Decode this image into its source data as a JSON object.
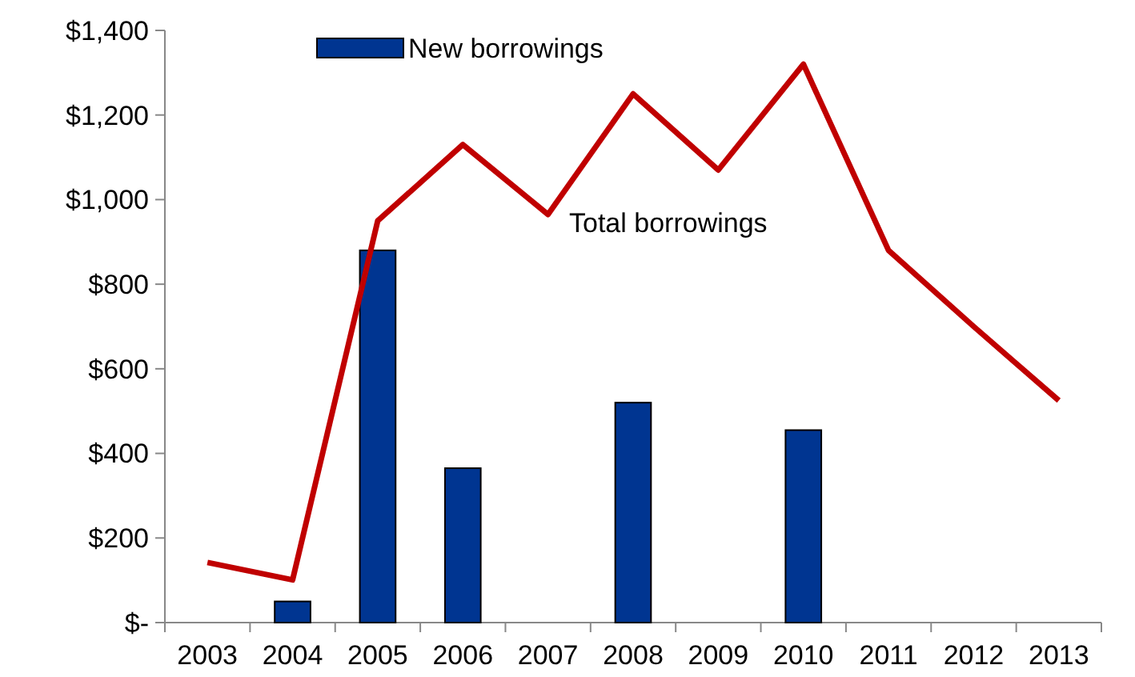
{
  "chart_data": {
    "type": "bar",
    "categories": [
      "2003",
      "2004",
      "2005",
      "2006",
      "2007",
      "2008",
      "2009",
      "2010",
      "2011",
      "2012",
      "2013"
    ],
    "series": [
      {
        "name": "New borrowings",
        "color": "#003591",
        "values": [
          null,
          50,
          880,
          365,
          null,
          520,
          null,
          455,
          null,
          null,
          null
        ]
      },
      {
        "name": "Total borrowings",
        "type": "line",
        "color": "#c00000",
        "values": [
          142,
          101,
          950,
          1130,
          965,
          1250,
          1070,
          1320,
          880,
          700,
          525
        ]
      }
    ],
    "ylim": [
      0,
      1400
    ],
    "yticks": [
      {
        "value": 0,
        "label": "$-"
      },
      {
        "value": 200,
        "label": "$200"
      },
      {
        "value": 400,
        "label": "$400"
      },
      {
        "value": 600,
        "label": "$600"
      },
      {
        "value": 800,
        "label": "$800"
      },
      {
        "value": 1000,
        "label": "$1,000"
      },
      {
        "value": 1200,
        "label": "$1,200"
      },
      {
        "value": 1400,
        "label": "$1,400"
      }
    ],
    "grid": false,
    "legend": "top",
    "marker": "none",
    "line_style": "solid"
  }
}
